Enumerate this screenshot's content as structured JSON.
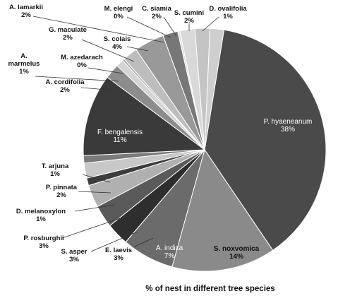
{
  "chart_data": {
    "type": "pie",
    "title": "% of nest in different tree species",
    "legend": "none",
    "slices": [
      {
        "name": "P. hyaeneanum",
        "value": 38,
        "label": "38%",
        "color": "#4a4a4a"
      },
      {
        "name": "S. noxvomica",
        "value": 14,
        "label": "14%",
        "color": "#8a8a8a"
      },
      {
        "name": "A. indica",
        "value": 7,
        "label": "7%",
        "color": "#6b6b6b"
      },
      {
        "name": "E. laevis",
        "value": 3,
        "label": "3%",
        "color": "#2e2e2e"
      },
      {
        "name": "S. asper",
        "value": 3,
        "label": "3%",
        "color": "#5a5a5a"
      },
      {
        "name": "P. rosburghii",
        "value": 3,
        "label": "3%",
        "color": "#b0b0b0"
      },
      {
        "name": "D. melanoxylon",
        "value": 1,
        "label": "1%",
        "color": "#3c3c3c"
      },
      {
        "name": "P. pinnata",
        "value": 2,
        "label": "2%",
        "color": "#c8c8c8"
      },
      {
        "name": "T. arjuna",
        "value": 1,
        "label": "1%",
        "color": "#7a7a7a"
      },
      {
        "name": "F. bengalensis",
        "value": 11,
        "label": "11%",
        "color": "#3a3a3a"
      },
      {
        "name": "A. cordifolia",
        "value": 2,
        "label": "2%",
        "color": "#8c8c8c"
      },
      {
        "name": "A. marmelus",
        "value": 1,
        "label": "1%",
        "color": "#d4d4d4"
      },
      {
        "name": "M. azedarach",
        "value": 0,
        "label": "0%",
        "color": "#aaaaaa"
      },
      {
        "name": "G. maculate",
        "value": 2,
        "label": "2%",
        "color": "#bdbdbd"
      },
      {
        "name": "S. colais",
        "value": 4,
        "label": "4%",
        "color": "#999999"
      },
      {
        "name": "A. lamarkii",
        "value": 2,
        "label": "2%",
        "color": "#777777"
      },
      {
        "name": "M. elengi",
        "value": 0,
        "label": "0%",
        "color": "#e0e0e0"
      },
      {
        "name": "C. siamia",
        "value": 2,
        "label": "2%",
        "color": "#d9d9d9"
      },
      {
        "name": "S. cumini",
        "value": 2,
        "label": "2%",
        "color": "#c4c4c4"
      },
      {
        "name": "D. ovalifolia",
        "value": 1,
        "label": "1%",
        "color": "#cfcfcf"
      }
    ]
  }
}
